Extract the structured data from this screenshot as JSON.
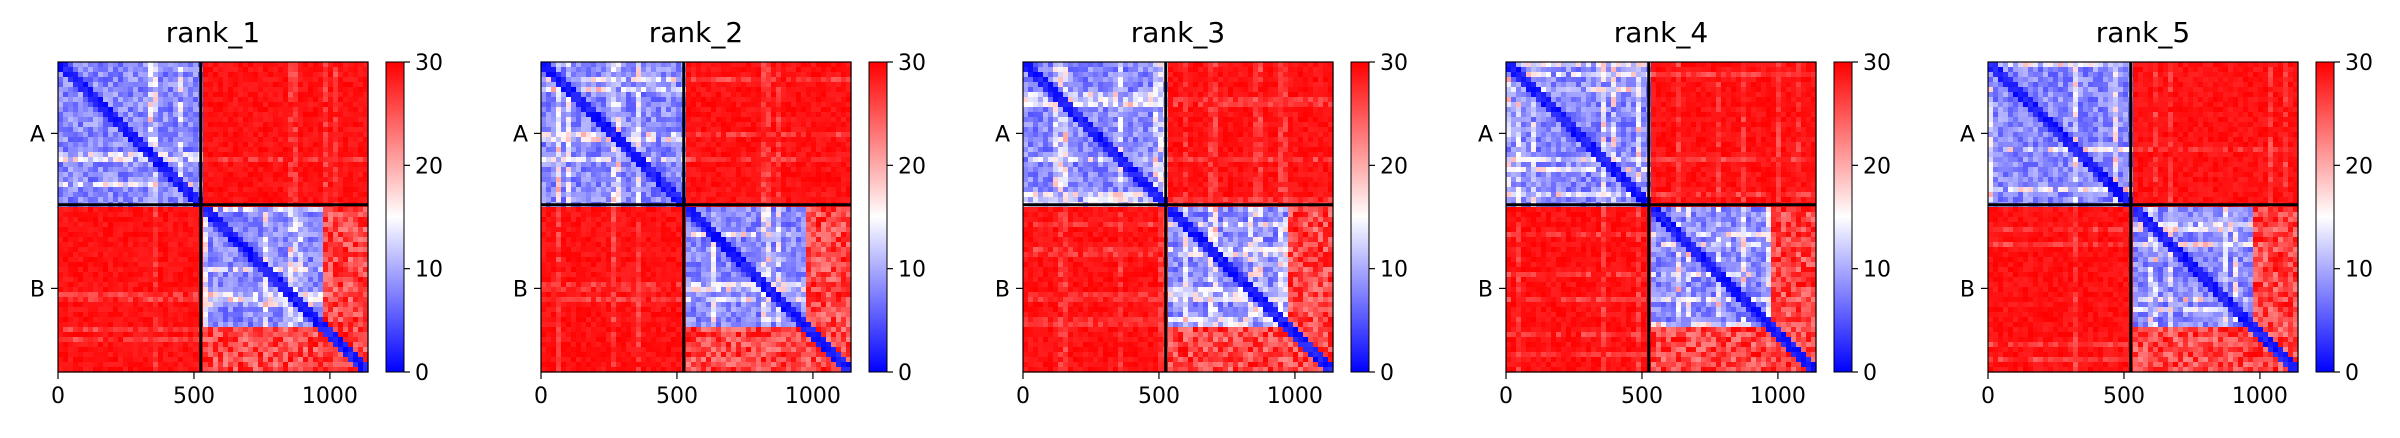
{
  "colors": {
    "low": "#0000ff",
    "mid": "#ffffff",
    "high": "#ff0000",
    "frame": "#000000"
  },
  "chart_data": [
    {
      "type": "heatmap",
      "title": "rank_1",
      "xlabel": "",
      "ylabel": "",
      "xticks": [
        0,
        500,
        1000
      ],
      "x_range": [
        0,
        1140
      ],
      "chains": [
        {
          "label": "A",
          "start": 0,
          "end": 525
        },
        {
          "label": "B",
          "start": 525,
          "end": 1140
        }
      ],
      "colorbar": {
        "min": 0,
        "max": 30,
        "ticks": [
          0,
          10,
          20,
          30
        ]
      },
      "values_description_levels": {
        "intra_chain": 8,
        "inter_chain": 29,
        "diagonal": 0
      }
    },
    {
      "type": "heatmap",
      "title": "rank_2",
      "xlabel": "",
      "ylabel": "",
      "xticks": [
        0,
        500,
        1000
      ],
      "x_range": [
        0,
        1140
      ],
      "chains": [
        {
          "label": "A",
          "start": 0,
          "end": 525
        },
        {
          "label": "B",
          "start": 525,
          "end": 1140
        }
      ],
      "colorbar": {
        "min": 0,
        "max": 30,
        "ticks": [
          0,
          10,
          20,
          30
        ]
      },
      "values_description_levels": {
        "intra_chain": 8,
        "inter_chain": 29,
        "diagonal": 0
      }
    },
    {
      "type": "heatmap",
      "title": "rank_3",
      "xlabel": "",
      "ylabel": "",
      "xticks": [
        0,
        500,
        1000
      ],
      "x_range": [
        0,
        1140
      ],
      "chains": [
        {
          "label": "A",
          "start": 0,
          "end": 525
        },
        {
          "label": "B",
          "start": 525,
          "end": 1140
        }
      ],
      "colorbar": {
        "min": 0,
        "max": 30,
        "ticks": [
          0,
          10,
          20,
          30
        ]
      },
      "values_description_levels": {
        "intra_chain": 8,
        "inter_chain": 29,
        "diagonal": 0
      }
    },
    {
      "type": "heatmap",
      "title": "rank_4",
      "xlabel": "",
      "ylabel": "",
      "xticks": [
        0,
        500,
        1000
      ],
      "x_range": [
        0,
        1140
      ],
      "chains": [
        {
          "label": "A",
          "start": 0,
          "end": 525
        },
        {
          "label": "B",
          "start": 525,
          "end": 1140
        }
      ],
      "colorbar": {
        "min": 0,
        "max": 30,
        "ticks": [
          0,
          10,
          20,
          30
        ]
      },
      "values_description_levels": {
        "intra_chain": 8,
        "inter_chain": 29,
        "diagonal": 0
      }
    },
    {
      "type": "heatmap",
      "title": "rank_5",
      "xlabel": "",
      "ylabel": "",
      "xticks": [
        0,
        500,
        1000
      ],
      "x_range": [
        0,
        1140
      ],
      "chains": [
        {
          "label": "A",
          "start": 0,
          "end": 525
        },
        {
          "label": "B",
          "start": 525,
          "end": 1140
        }
      ],
      "colorbar": {
        "min": 0,
        "max": 30,
        "ticks": [
          0,
          10,
          20,
          30
        ]
      },
      "values_description_levels": {
        "intra_chain": 8,
        "inter_chain": 29,
        "diagonal": 0
      }
    }
  ]
}
